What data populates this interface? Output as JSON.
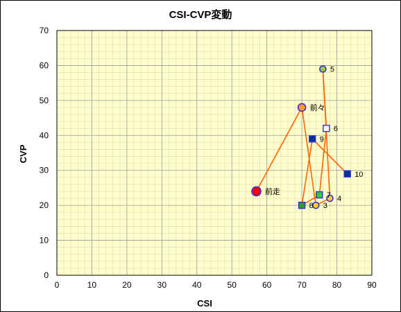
{
  "chart_data": {
    "type": "scatter",
    "title": "CSI-CVP変動",
    "xlabel": "CSI",
    "ylabel": "CVP",
    "xlim": [
      0,
      90
    ],
    "ylim": [
      0,
      70
    ],
    "xticks": [
      "0",
      "10",
      "20",
      "30",
      "40",
      "50",
      "60",
      "70",
      "80",
      "90"
    ],
    "yticks": [
      "0",
      "10",
      "20",
      "30",
      "40",
      "50",
      "60",
      "70"
    ],
    "grid": true,
    "minor_grid": true,
    "background_color": "#ffffcc",
    "line_color": "#ff6600",
    "path_order": [
      "前走",
      "前々",
      "3",
      "4",
      "5",
      "6",
      "7",
      "8",
      "9",
      "10"
    ],
    "points": [
      {
        "label": "前走",
        "x": 57,
        "y": 24,
        "marker": "circle",
        "fill": "#ff0000",
        "stroke": "#3333cc",
        "r": 6.5
      },
      {
        "label": "前々",
        "x": 70,
        "y": 48,
        "marker": "circle",
        "fill": "#ff9933",
        "stroke": "#3333cc",
        "r": 5.5
      },
      {
        "label": "3",
        "x": 74,
        "y": 20,
        "marker": "circle",
        "fill": "#ffcc33",
        "stroke": "#3333cc",
        "r": 4.5
      },
      {
        "label": "4",
        "x": 78,
        "y": 22,
        "marker": "circle",
        "fill": "#ffcc33",
        "stroke": "#3333cc",
        "r": 4.5
      },
      {
        "label": "5",
        "x": 76,
        "y": 59,
        "marker": "circle",
        "fill": "#99cc33",
        "stroke": "#3333cc",
        "r": 4.5
      },
      {
        "label": "6",
        "x": 77,
        "y": 42,
        "marker": "square",
        "fill": "#ffffff",
        "stroke": "#3333cc",
        "s": 9
      },
      {
        "label": "7",
        "x": 75,
        "y": 23,
        "marker": "square",
        "fill": "#33cc33",
        "stroke": "#3333cc",
        "s": 9
      },
      {
        "label": "8",
        "x": 70,
        "y": 20,
        "marker": "square",
        "fill": "#339933",
        "stroke": "#3333cc",
        "s": 9
      },
      {
        "label": "9",
        "x": 73,
        "y": 39,
        "marker": "square",
        "fill": "#003399",
        "stroke": "#3333cc",
        "s": 9
      },
      {
        "label": "10",
        "x": 83,
        "y": 29,
        "marker": "square",
        "fill": "#003399",
        "stroke": "#3333cc",
        "s": 9
      }
    ]
  }
}
